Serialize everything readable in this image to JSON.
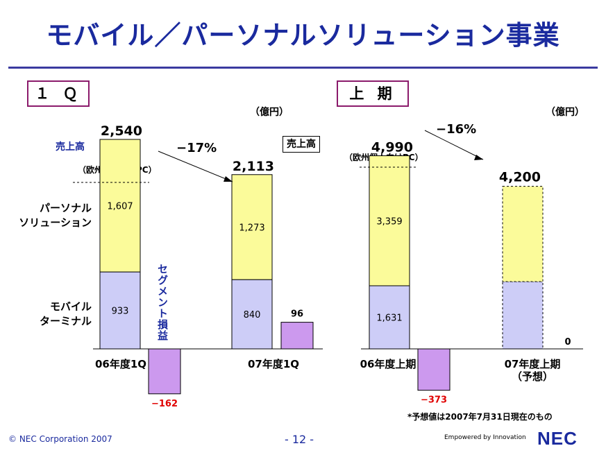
{
  "title": "モバイル／パーソナルソリューション事業",
  "colors": {
    "personal": "#fbfb9a",
    "mobile": "#cdcdf7",
    "segment_loss": "#cc99ee",
    "title": "#1a2a9e",
    "negative": "#e00000",
    "panel_border": "#8b1a6b"
  },
  "labels": {
    "personal_solution": [
      "パーソナル",
      "ソリューション"
    ],
    "mobile_terminal": [
      "モバイル",
      "ターミナル"
    ],
    "sales": "売上高",
    "sales_boxed": "売上高",
    "eu_pc": "（欧州個人向けPC）",
    "segment_loss": "セグメント損益",
    "unit": "（億円）"
  },
  "chart_data": [
    {
      "type": "bar",
      "panel_label": "１ Ｑ",
      "unit": "（億円）",
      "categories": [
        "06年度1Q",
        "07年度1Q"
      ],
      "series": [
        {
          "name": "モバイルターミナル",
          "values": [
            933,
            840
          ]
        },
        {
          "name": "パーソナルソリューション",
          "values": [
            1607,
            1273
          ]
        }
      ],
      "totals": [
        "2,540",
        "2,113"
      ],
      "segment_profit": {
        "values": [
          -162,
          96
        ],
        "labels": [
          "−162",
          "96"
        ]
      },
      "segment_labels": [
        "933",
        "840"
      ],
      "personal_labels": [
        "1,607",
        "1,273"
      ],
      "change": "−17%"
    },
    {
      "type": "bar",
      "panel_label": "上 期",
      "unit": "（億円）",
      "categories": [
        "06年度上期",
        "07年度上期"
      ],
      "category_notes": [
        "",
        "（予想）"
      ],
      "series": [
        {
          "name": "モバイルターミナル",
          "values": [
            1631,
            null
          ]
        },
        {
          "name": "パーソナルソリューション",
          "values": [
            3359,
            null
          ]
        }
      ],
      "totals": [
        "4,990",
        "4,200"
      ],
      "forecast_total": 4200,
      "segment_profit": {
        "values": [
          -373,
          0
        ],
        "labels": [
          "−373",
          "0"
        ]
      },
      "segment_labels": [
        "1,631",
        ""
      ],
      "personal_labels": [
        "3,359",
        ""
      ],
      "change": "−16%"
    }
  ],
  "footnote": "*予想値は2007年7月31日現在のもの",
  "footer": {
    "copyright": "© NEC Corporation 2007",
    "page": "- 12 -",
    "tagline": "Empowered by Innovation",
    "logo": "NEC"
  }
}
